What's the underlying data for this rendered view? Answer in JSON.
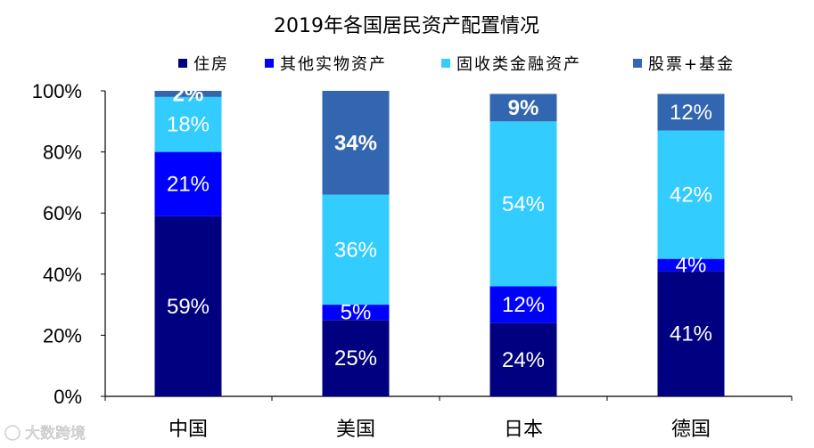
{
  "chart_data": {
    "type": "bar",
    "stacked": true,
    "title": "2019年各国居民资产配置情况",
    "categories": [
      "中国",
      "美国",
      "日本",
      "德国"
    ],
    "series": [
      {
        "name": "住房",
        "color": "#000080",
        "values": [
          59,
          25,
          24,
          41
        ],
        "labels": [
          "59%",
          "25%",
          "24%",
          "41%"
        ]
      },
      {
        "name": "其他实物资产",
        "color": "#0000FF",
        "values": [
          21,
          5,
          12,
          4
        ],
        "labels": [
          "21%",
          "5%",
          "12%",
          "4%"
        ]
      },
      {
        "name": "固收类金融资产",
        "color": "#33CCFF",
        "values": [
          18,
          36,
          54,
          42
        ],
        "labels": [
          "18%",
          "36%",
          "54%",
          "42%"
        ]
      },
      {
        "name": "股票+基金",
        "color": "#3366B0",
        "values": [
          2,
          34,
          9,
          12
        ],
        "labels": [
          "2%",
          "34%",
          "9%",
          "12%"
        ]
      }
    ],
    "yticks": [
      "0%",
      "20%",
      "40%",
      "60%",
      "80%",
      "100%"
    ],
    "ylim": [
      0,
      100
    ],
    "legend_position": "top",
    "grid": false
  },
  "watermark": {
    "text": "大数跨境"
  }
}
